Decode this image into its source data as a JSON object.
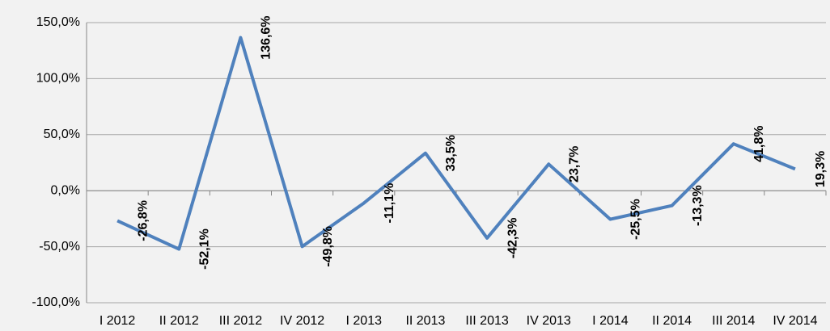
{
  "chart_data": {
    "type": "line",
    "categories": [
      "I 2012",
      "II 2012",
      "III 2012",
      "IV 2012",
      "I 2013",
      "II 2013",
      "III 2013",
      "IV 2013",
      "I 2014",
      "II 2014",
      "III 2014",
      "IV 2014"
    ],
    "values": [
      -26.8,
      -52.1,
      136.6,
      -49.8,
      -11.1,
      33.5,
      -42.3,
      23.7,
      -25.5,
      -13.3,
      41.8,
      19.3
    ],
    "value_labels": [
      "-26,8%",
      "-52,1%",
      "136,6%",
      "-49,8%",
      "-11,1%",
      "33,5%",
      "-42,3%",
      "23,7%",
      "-25,5%",
      "-13,3%",
      "41,8%",
      "19,3%"
    ],
    "color": "#4f81bd",
    "ylim": [
      -100,
      150
    ],
    "yticks": [
      {
        "value": -100,
        "label": "-100,0%"
      },
      {
        "value": -50,
        "label": "-50,0%"
      },
      {
        "value": 0,
        "label": "0,0%"
      },
      {
        "value": 50,
        "label": "50,0%"
      },
      {
        "value": 100,
        "label": "100,0%"
      },
      {
        "value": 150,
        "label": "150,0%"
      }
    ],
    "grid": true
  }
}
